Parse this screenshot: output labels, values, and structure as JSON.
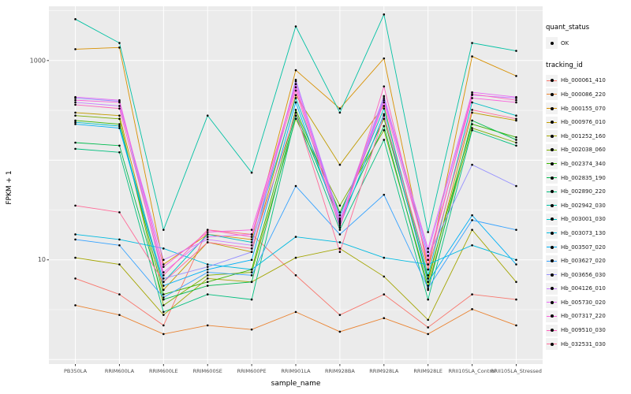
{
  "legend": {
    "quant_status_title": "quant_status",
    "quant_status_items": [
      {
        "label": "OK"
      }
    ],
    "tracking_id_title": "tracking_id"
  },
  "chart_data": {
    "type": "line",
    "title": "",
    "xlabel": "sample_name",
    "ylabel": "FPKM + 1",
    "y_scale": "log10",
    "ylim": [
      0.9,
      3500
    ],
    "y_tick_breaks": [
      10,
      1000
    ],
    "y_major_gridlines": [
      1,
      10,
      100,
      1000
    ],
    "y_minor_gridlines": [
      3.162,
      31.62,
      316.2,
      3162
    ],
    "panel_bg": "#EBEBEB",
    "grid_color": "#FFFFFF",
    "point_color": "#000000",
    "tick_text_color": "#4D4D4D",
    "categories": [
      "PB350LA",
      "RRIM600LA",
      "RRIM600LE",
      "RRIM600SE",
      "RRIM600PE",
      "RRIM901LA",
      "RRIM928BA",
      "RRIM928LA",
      "RRIM928LE",
      "RRII105LA_Control",
      "RRII105LA_Stressed"
    ],
    "series": [
      {
        "name": "Hb_000061_410",
        "color": "#F8766D",
        "values": [
          6.5,
          4.5,
          2.2,
          20,
          18,
          7,
          2.8,
          4.5,
          2.1,
          4.5,
          4
        ]
      },
      {
        "name": "Hb_000086_220",
        "color": "#EA8331",
        "values": [
          3.5,
          2.8,
          1.8,
          2.2,
          2.0,
          3.0,
          1.9,
          2.6,
          1.8,
          3.2,
          2.2
        ]
      },
      {
        "name": "Hb_000155_070",
        "color": "#D89000",
        "values": [
          1300,
          1350,
          9,
          18,
          16,
          800,
          330,
          1050,
          8,
          1100,
          700
        ]
      },
      {
        "name": "Hb_000976_010",
        "color": "#C09B00",
        "values": [
          300,
          280,
          5,
          15,
          12,
          450,
          90,
          350,
          6,
          300,
          250
        ]
      },
      {
        "name": "Hb_001252_160",
        "color": "#A3A500",
        "values": [
          10.5,
          9,
          2.8,
          6.5,
          6,
          10.5,
          13,
          6.8,
          2.5,
          20,
          6
        ]
      },
      {
        "name": "Hb_002038_060",
        "color": "#7CAE00",
        "values": [
          280,
          260,
          3.5,
          7,
          7.5,
          260,
          35,
          200,
          5.5,
          210,
          150
        ]
      },
      {
        "name": "Hb_002374_340",
        "color": "#39B600",
        "values": [
          250,
          230,
          4.5,
          6,
          8,
          320,
          30,
          260,
          6.5,
          230,
          170
        ]
      },
      {
        "name": "Hb_002835_190",
        "color": "#00BB4E",
        "values": [
          150,
          140,
          4,
          5.5,
          6,
          300,
          25,
          220,
          5,
          250,
          160
        ]
      },
      {
        "name": "Hb_002890_220",
        "color": "#00BF7D",
        "values": [
          130,
          120,
          3,
          4.5,
          4,
          280,
          20,
          160,
          4,
          200,
          140
        ]
      },
      {
        "name": "Hb_002942_030",
        "color": "#00C1A3",
        "values": [
          2600,
          1500,
          20,
          280,
          75,
          2200,
          300,
          2900,
          19,
          1500,
          1250
        ]
      },
      {
        "name": "Hb_003001_030",
        "color": "#00BFC4",
        "values": [
          240,
          220,
          6,
          18,
          15,
          420,
          28,
          330,
          7,
          380,
          280
        ]
      },
      {
        "name": "Hb_003073_130",
        "color": "#00BAE0",
        "values": [
          18,
          16,
          13,
          9,
          8,
          17,
          15,
          10.5,
          9,
          14,
          10
        ]
      },
      {
        "name": "Hb_003507_020",
        "color": "#00B0F6",
        "values": [
          230,
          210,
          5.5,
          8,
          10,
          380,
          22,
          290,
          6,
          28,
          9
        ]
      },
      {
        "name": "Hb_003627_020",
        "color": "#35A2FF",
        "values": [
          16,
          14,
          4.2,
          7.5,
          7,
          55,
          18,
          45,
          5.2,
          25,
          20
        ]
      },
      {
        "name": "Hb_003656_030",
        "color": "#9590FF",
        "values": [
          420,
          390,
          6.5,
          8.5,
          12,
          640,
          24,
          420,
          11,
          90,
          55
        ]
      },
      {
        "name": "Hb_004126_010",
        "color": "#C77CFF",
        "values": [
          380,
          350,
          10,
          16,
          14,
          620,
          26,
          440,
          12,
          450,
          420
        ]
      },
      {
        "name": "Hb_005730_020",
        "color": "#E76BF3",
        "values": [
          430,
          400,
          7.5,
          17,
          18,
          580,
          24,
          400,
          13,
          480,
          430
        ]
      },
      {
        "name": "Hb_007317_220",
        "color": "#FA62DB",
        "values": [
          400,
          380,
          8.5,
          19,
          20,
          540,
          23,
          380,
          10,
          420,
          380
        ]
      },
      {
        "name": "Hb_009510_030",
        "color": "#FF62BC",
        "values": [
          360,
          330,
          7,
          20,
          17,
          500,
          21,
          550,
          9,
          460,
          400
        ]
      },
      {
        "name": "Hb_032531_030",
        "color": "#FF6A98",
        "values": [
          35,
          30,
          6,
          15,
          13,
          300,
          12,
          280,
          8,
          320,
          260
        ]
      }
    ]
  }
}
